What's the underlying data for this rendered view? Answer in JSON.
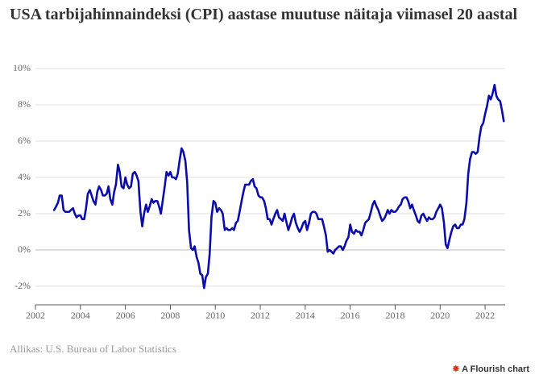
{
  "chart_data": {
    "type": "line",
    "title": "USA tarbijahinnaindeksi (CPI) aastase muutuse näitaja viimasel 20 aastal",
    "source": "Allikas: U.S. Bureau of Labor Statistics",
    "credit": "A Flourish chart",
    "color": "#0c0ca8",
    "grid": true,
    "xlim": [
      2002,
      2023
    ],
    "xticks": [
      2002,
      2004,
      2006,
      2008,
      2010,
      2012,
      2014,
      2016,
      2018,
      2020,
      2022
    ],
    "ylim": [
      -3,
      10
    ],
    "yticks": [
      {
        "value": -2,
        "label": "-2%"
      },
      {
        "value": 0,
        "label": "0%"
      },
      {
        "value": 2,
        "label": "2%"
      },
      {
        "value": 4,
        "label": "4%"
      },
      {
        "value": 6,
        "label": "6%"
      },
      {
        "value": 8,
        "label": "8%"
      },
      {
        "value": 10,
        "label": "10%"
      }
    ],
    "x": [
      2002.83,
      2002.92,
      2003,
      2003.08,
      2003.17,
      2003.25,
      2003.33,
      2003.42,
      2003.5,
      2003.58,
      2003.67,
      2003.75,
      2003.83,
      2003.92,
      2004,
      2004.08,
      2004.17,
      2004.25,
      2004.33,
      2004.42,
      2004.5,
      2004.58,
      2004.67,
      2004.75,
      2004.83,
      2004.92,
      2005,
      2005.08,
      2005.17,
      2005.25,
      2005.33,
      2005.42,
      2005.5,
      2005.58,
      2005.67,
      2005.75,
      2005.83,
      2005.92,
      2006,
      2006.08,
      2006.17,
      2006.25,
      2006.33,
      2006.42,
      2006.5,
      2006.58,
      2006.67,
      2006.75,
      2006.83,
      2006.92,
      2007,
      2007.08,
      2007.17,
      2007.25,
      2007.33,
      2007.42,
      2007.5,
      2007.58,
      2007.67,
      2007.75,
      2007.83,
      2007.92,
      2008,
      2008.08,
      2008.17,
      2008.25,
      2008.33,
      2008.42,
      2008.5,
      2008.58,
      2008.67,
      2008.75,
      2008.83,
      2008.92,
      2009,
      2009.08,
      2009.17,
      2009.25,
      2009.33,
      2009.42,
      2009.5,
      2009.58,
      2009.67,
      2009.75,
      2009.83,
      2009.92,
      2010,
      2010.08,
      2010.17,
      2010.25,
      2010.33,
      2010.42,
      2010.5,
      2010.58,
      2010.67,
      2010.75,
      2010.83,
      2010.92,
      2011,
      2011.08,
      2011.17,
      2011.25,
      2011.33,
      2011.42,
      2011.5,
      2011.58,
      2011.67,
      2011.75,
      2011.83,
      2011.92,
      2012,
      2012.08,
      2012.17,
      2012.25,
      2012.33,
      2012.42,
      2012.5,
      2012.58,
      2012.67,
      2012.75,
      2012.83,
      2012.92,
      2013,
      2013.08,
      2013.17,
      2013.25,
      2013.33,
      2013.42,
      2013.5,
      2013.58,
      2013.67,
      2013.75,
      2013.83,
      2013.92,
      2014,
      2014.08,
      2014.17,
      2014.25,
      2014.33,
      2014.42,
      2014.5,
      2014.58,
      2014.67,
      2014.75,
      2014.83,
      2014.92,
      2015,
      2015.08,
      2015.17,
      2015.25,
      2015.33,
      2015.42,
      2015.5,
      2015.58,
      2015.67,
      2015.75,
      2015.83,
      2015.92,
      2016,
      2016.08,
      2016.17,
      2016.25,
      2016.33,
      2016.42,
      2016.5,
      2016.58,
      2016.67,
      2016.75,
      2016.83,
      2016.92,
      2017,
      2017.08,
      2017.17,
      2017.25,
      2017.33,
      2017.42,
      2017.5,
      2017.58,
      2017.67,
      2017.75,
      2017.83,
      2017.92,
      2018,
      2018.08,
      2018.17,
      2018.25,
      2018.33,
      2018.42,
      2018.5,
      2018.58,
      2018.67,
      2018.75,
      2018.83,
      2018.92,
      2019,
      2019.08,
      2019.17,
      2019.25,
      2019.33,
      2019.42,
      2019.5,
      2019.58,
      2019.67,
      2019.75,
      2019.83,
      2019.92,
      2020,
      2020.08,
      2020.17,
      2020.25,
      2020.33,
      2020.42,
      2020.5,
      2020.58,
      2020.67,
      2020.75,
      2020.83,
      2020.92,
      2021,
      2021.08,
      2021.17,
      2021.25,
      2021.33,
      2021.42,
      2021.5,
      2021.58,
      2021.67,
      2021.75,
      2021.83,
      2021.92,
      2022,
      2022.08,
      2022.17,
      2022.25,
      2022.33,
      2022.42,
      2022.5,
      2022.58,
      2022.67,
      2022.75,
      2022.83
    ],
    "values": [
      2.2,
      2.4,
      2.6,
      3.0,
      3.0,
      2.2,
      2.1,
      2.1,
      2.1,
      2.2,
      2.3,
      2.0,
      1.8,
      1.9,
      1.9,
      1.7,
      1.7,
      2.3,
      3.1,
      3.3,
      3.0,
      2.7,
      2.5,
      3.2,
      3.5,
      3.3,
      3.0,
      3.0,
      3.1,
      3.5,
      2.8,
      2.5,
      3.2,
      3.6,
      4.7,
      4.3,
      3.5,
      3.4,
      4.0,
      3.6,
      3.4,
      3.5,
      4.2,
      4.3,
      4.1,
      3.8,
      2.1,
      1.3,
      2.0,
      2.5,
      2.1,
      2.4,
      2.8,
      2.6,
      2.7,
      2.7,
      2.4,
      2.0,
      2.8,
      3.5,
      4.3,
      4.1,
      4.3,
      4.0,
      4.0,
      3.9,
      4.2,
      5.0,
      5.6,
      5.4,
      4.9,
      3.7,
      1.1,
      0.1,
      0.0,
      0.2,
      -0.4,
      -0.7,
      -1.3,
      -1.4,
      -2.1,
      -1.5,
      -1.3,
      -0.2,
      1.8,
      2.7,
      2.6,
      2.1,
      2.3,
      2.2,
      2.0,
      1.1,
      1.2,
      1.1,
      1.1,
      1.2,
      1.1,
      1.5,
      1.6,
      2.1,
      2.7,
      3.2,
      3.6,
      3.6,
      3.6,
      3.8,
      3.9,
      3.5,
      3.4,
      3.0,
      2.9,
      2.9,
      2.7,
      2.3,
      1.7,
      1.7,
      1.4,
      1.7,
      2.0,
      2.2,
      1.8,
      1.7,
      1.6,
      2.0,
      1.5,
      1.1,
      1.4,
      1.8,
      2.0,
      1.5,
      1.2,
      1.0,
      1.2,
      1.5,
      1.6,
      1.1,
      1.5,
      2.0,
      2.1,
      2.1,
      2.0,
      1.7,
      1.7,
      1.7,
      1.3,
      0.8,
      -0.1,
      0.0,
      -0.1,
      -0.2,
      0.0,
      0.1,
      0.2,
      0.2,
      0.0,
      0.2,
      0.5,
      0.7,
      1.4,
      1.0,
      0.9,
      1.1,
      1.0,
      1.0,
      0.8,
      1.1,
      1.5,
      1.6,
      1.7,
      2.1,
      2.5,
      2.7,
      2.4,
      2.2,
      1.9,
      1.6,
      1.7,
      1.9,
      2.2,
      2.0,
      2.2,
      2.1,
      2.1,
      2.2,
      2.4,
      2.5,
      2.8,
      2.9,
      2.9,
      2.7,
      2.3,
      2.5,
      2.2,
      1.9,
      1.6,
      1.5,
      1.9,
      2.0,
      1.8,
      1.6,
      1.8,
      1.7,
      1.7,
      1.8,
      2.1,
      2.3,
      2.5,
      2.3,
      1.5,
      0.3,
      0.1,
      0.6,
      1.0,
      1.3,
      1.4,
      1.2,
      1.2,
      1.4,
      1.4,
      1.7,
      2.6,
      4.2,
      5.0,
      5.4,
      5.4,
      5.3,
      5.4,
      6.2,
      6.8,
      7.0,
      7.5,
      7.9,
      8.5,
      8.3,
      8.6,
      9.1,
      8.5,
      8.3,
      8.2,
      7.7,
      7.1
    ]
  }
}
